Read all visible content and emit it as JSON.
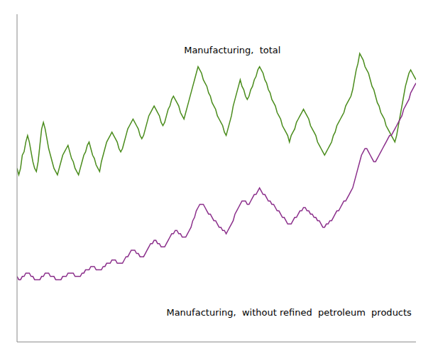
{
  "chart_data": {
    "type": "line",
    "x": [
      0,
      1,
      2,
      3,
      4,
      5,
      6,
      7,
      8,
      9,
      10,
      11,
      12,
      13,
      14,
      15,
      16,
      17,
      18,
      19,
      20,
      21,
      22,
      23,
      24,
      25,
      26,
      27,
      28,
      29,
      30,
      31,
      32,
      33,
      34,
      35,
      36,
      37,
      38,
      39,
      40,
      41,
      42,
      43,
      44,
      45,
      46,
      47,
      48,
      49,
      50,
      51,
      52,
      53,
      54,
      55,
      56,
      57,
      58,
      59,
      60,
      61,
      62,
      63,
      64,
      65,
      66,
      67,
      68,
      69,
      70,
      71,
      72,
      73,
      74,
      75,
      76,
      77,
      78,
      79,
      80,
      81,
      82,
      83,
      84,
      85,
      86,
      87,
      88,
      89,
      90,
      91,
      92,
      93,
      94,
      95,
      96,
      97,
      98,
      99,
      100,
      101,
      102,
      103,
      104,
      105,
      106,
      107,
      108,
      109,
      110,
      111,
      112,
      113,
      114,
      115,
      116,
      117,
      118,
      119,
      120,
      121,
      122,
      123,
      124,
      125,
      126,
      127,
      128,
      129,
      130,
      131,
      132,
      133,
      134,
      135,
      136,
      137,
      138,
      139,
      140,
      141,
      142,
      143,
      144,
      145,
      146,
      147,
      148,
      149,
      150,
      151,
      152,
      153,
      154,
      155,
      156,
      157,
      158,
      159,
      160,
      161,
      162,
      163,
      164,
      165,
      166,
      167,
      168,
      169,
      170,
      171,
      172,
      173,
      174,
      175,
      176,
      177,
      178,
      179,
      180,
      181,
      182,
      183,
      184,
      185,
      186,
      187,
      188,
      189,
      190,
      191,
      192,
      193,
      194,
      195,
      196,
      197,
      198,
      199,
      200,
      201,
      202,
      203,
      204,
      205,
      206,
      207,
      208,
      209,
      210,
      211,
      212,
      213,
      214,
      215,
      216,
      217,
      218,
      219,
      220,
      221,
      222,
      223,
      224,
      225,
      226,
      227
    ],
    "series": [
      {
        "color": "#4a8c1c",
        "values": [
          128,
          126,
          128,
          132,
          133,
          136,
          138,
          136,
          133,
          130,
          128,
          127,
          130,
          135,
          140,
          142,
          140,
          137,
          134,
          132,
          130,
          128,
          127,
          126,
          128,
          130,
          132,
          133,
          134,
          135,
          133,
          131,
          130,
          128,
          127,
          126,
          128,
          130,
          132,
          133,
          135,
          136,
          134,
          132,
          131,
          129,
          128,
          127,
          130,
          132,
          134,
          136,
          137,
          138,
          139,
          138,
          137,
          136,
          134,
          133,
          134,
          136,
          138,
          140,
          141,
          142,
          143,
          142,
          141,
          140,
          138,
          137,
          138,
          140,
          142,
          144,
          145,
          146,
          147,
          146,
          145,
          144,
          142,
          141,
          142,
          144,
          146,
          147,
          149,
          150,
          149,
          148,
          147,
          145,
          144,
          143,
          145,
          147,
          149,
          151,
          153,
          155,
          157,
          159,
          158,
          157,
          155,
          154,
          153,
          151,
          150,
          148,
          147,
          146,
          144,
          143,
          142,
          141,
          139,
          138,
          140,
          142,
          144,
          147,
          149,
          151,
          153,
          155,
          153,
          152,
          150,
          149,
          150,
          152,
          153,
          155,
          156,
          158,
          159,
          158,
          157,
          155,
          154,
          152,
          151,
          149,
          148,
          147,
          145,
          144,
          143,
          141,
          140,
          139,
          138,
          136,
          138,
          139,
          140,
          142,
          143,
          144,
          145,
          146,
          145,
          144,
          143,
          141,
          140,
          139,
          138,
          136,
          135,
          134,
          133,
          132,
          133,
          134,
          135,
          136,
          138,
          139,
          141,
          142,
          143,
          144,
          145,
          147,
          148,
          149,
          150,
          152,
          155,
          158,
          160,
          163,
          162,
          161,
          159,
          158,
          157,
          155,
          153,
          152,
          150,
          148,
          147,
          145,
          144,
          143,
          141,
          140,
          139,
          138,
          137,
          136,
          138,
          141,
          144,
          147,
          150,
          153,
          155,
          157,
          158,
          157,
          156,
          155
        ]
      },
      {
        "color": "#8b2f8b",
        "values": [
          95,
          94,
          94,
          95,
          95,
          96,
          96,
          96,
          95,
          95,
          94,
          94,
          94,
          94,
          95,
          95,
          96,
          96,
          96,
          95,
          95,
          95,
          94,
          94,
          94,
          94,
          95,
          95,
          95,
          96,
          96,
          96,
          96,
          95,
          95,
          95,
          95,
          96,
          96,
          97,
          97,
          97,
          98,
          98,
          98,
          97,
          97,
          97,
          97,
          98,
          98,
          99,
          99,
          99,
          100,
          100,
          100,
          99,
          99,
          99,
          99,
          100,
          101,
          101,
          102,
          103,
          103,
          103,
          102,
          102,
          101,
          101,
          101,
          102,
          103,
          104,
          105,
          105,
          106,
          106,
          105,
          105,
          104,
          104,
          104,
          105,
          106,
          107,
          108,
          108,
          109,
          109,
          108,
          108,
          107,
          107,
          107,
          108,
          109,
          110,
          112,
          113,
          115,
          116,
          117,
          117,
          117,
          116,
          115,
          114,
          114,
          113,
          112,
          112,
          111,
          110,
          110,
          109,
          109,
          108,
          109,
          110,
          111,
          112,
          114,
          115,
          116,
          117,
          118,
          118,
          118,
          117,
          117,
          118,
          119,
          120,
          120,
          121,
          122,
          121,
          120,
          120,
          119,
          118,
          118,
          117,
          117,
          116,
          115,
          115,
          114,
          113,
          113,
          112,
          111,
          111,
          111,
          112,
          113,
          113,
          114,
          115,
          115,
          116,
          116,
          115,
          115,
          114,
          114,
          113,
          113,
          112,
          112,
          111,
          110,
          110,
          111,
          111,
          112,
          112,
          113,
          114,
          115,
          115,
          116,
          117,
          118,
          118,
          119,
          120,
          121,
          122,
          124,
          126,
          128,
          130,
          132,
          133,
          134,
          134,
          133,
          132,
          131,
          130,
          130,
          131,
          132,
          133,
          134,
          135,
          136,
          137,
          138,
          138,
          139,
          140,
          141,
          142,
          143,
          144,
          146,
          147,
          148,
          149,
          151,
          152,
          153,
          154
        ]
      }
    ],
    "annotations": [
      {
        "text": "Manufacturing,  total",
        "x": 95,
        "y": 163
      },
      {
        "text": "Manufacturing,  without refined  petroleum  products",
        "x": 85,
        "y": 83
      }
    ],
    "xlim": [
      0,
      227
    ],
    "ylim": [
      75,
      175
    ],
    "grid": false,
    "tick_labels": false
  }
}
